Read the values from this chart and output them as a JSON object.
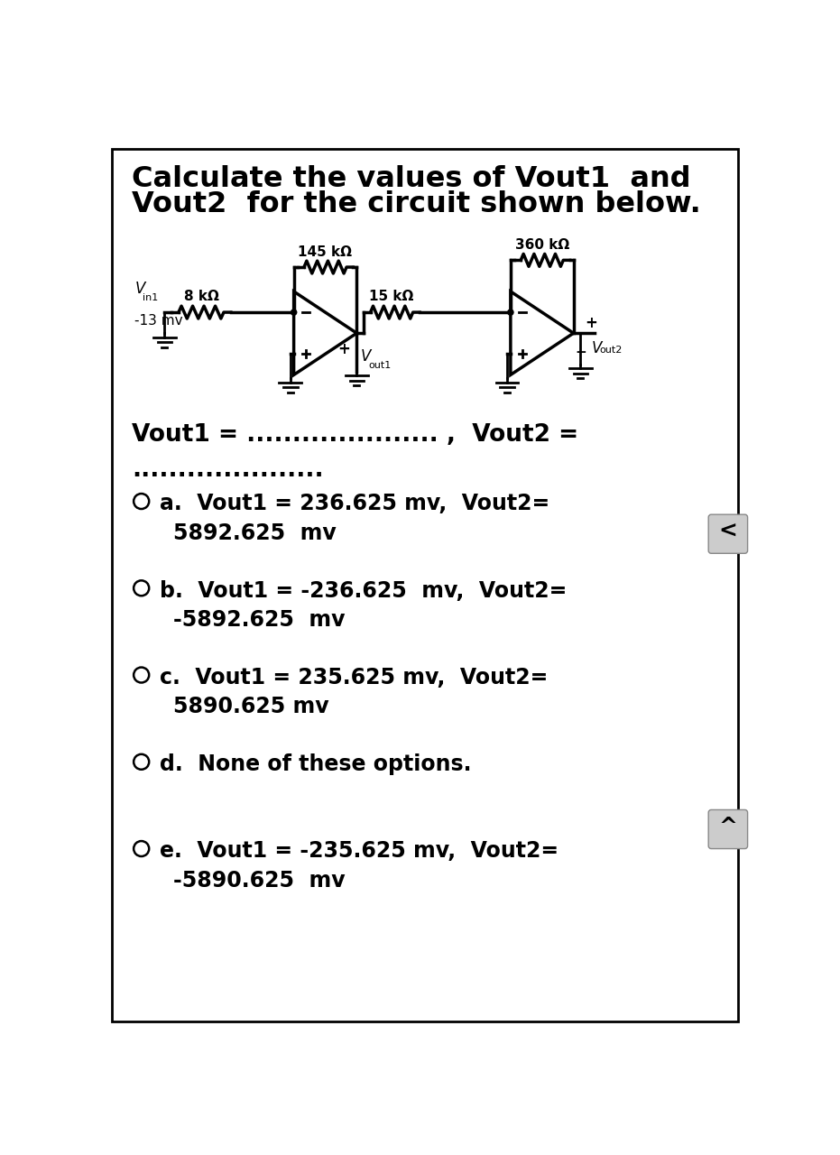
{
  "title_line1": "Calculate the values of Vout1  and",
  "title_line2": "Vout2  for the circuit shown below.",
  "background_color": "#ffffff",
  "question_text": "Vout1 = ..................... ,  Vout2 =",
  "question_text2": ".....................",
  "options": [
    {
      "label": "a.",
      "line1": "Vout1 = 236.625 mv,  Vout2=",
      "line2": "5892.625  mv"
    },
    {
      "label": "b.",
      "line1": "Vout1 = -236.625  mv,  Vout2=",
      "line2": "-5892.625  mv"
    },
    {
      "label": "c.",
      "line1": "Vout1 = 235.625 mv,  Vout2=",
      "line2": "5890.625 mv"
    },
    {
      "label": "d.",
      "line1": "None of these options.",
      "line2": ""
    },
    {
      "label": "e.",
      "line1": "Vout1 = -235.625 mv,  Vout2=",
      "line2": "-5890.625  mv"
    }
  ],
  "circuit": {
    "r1": "8 kΩ",
    "r2": "145 kΩ",
    "r3": "15 kΩ",
    "r4": "360 kΩ",
    "vin_value": "-13 mv"
  },
  "btn_left_label": "<",
  "btn_up_label": "^"
}
